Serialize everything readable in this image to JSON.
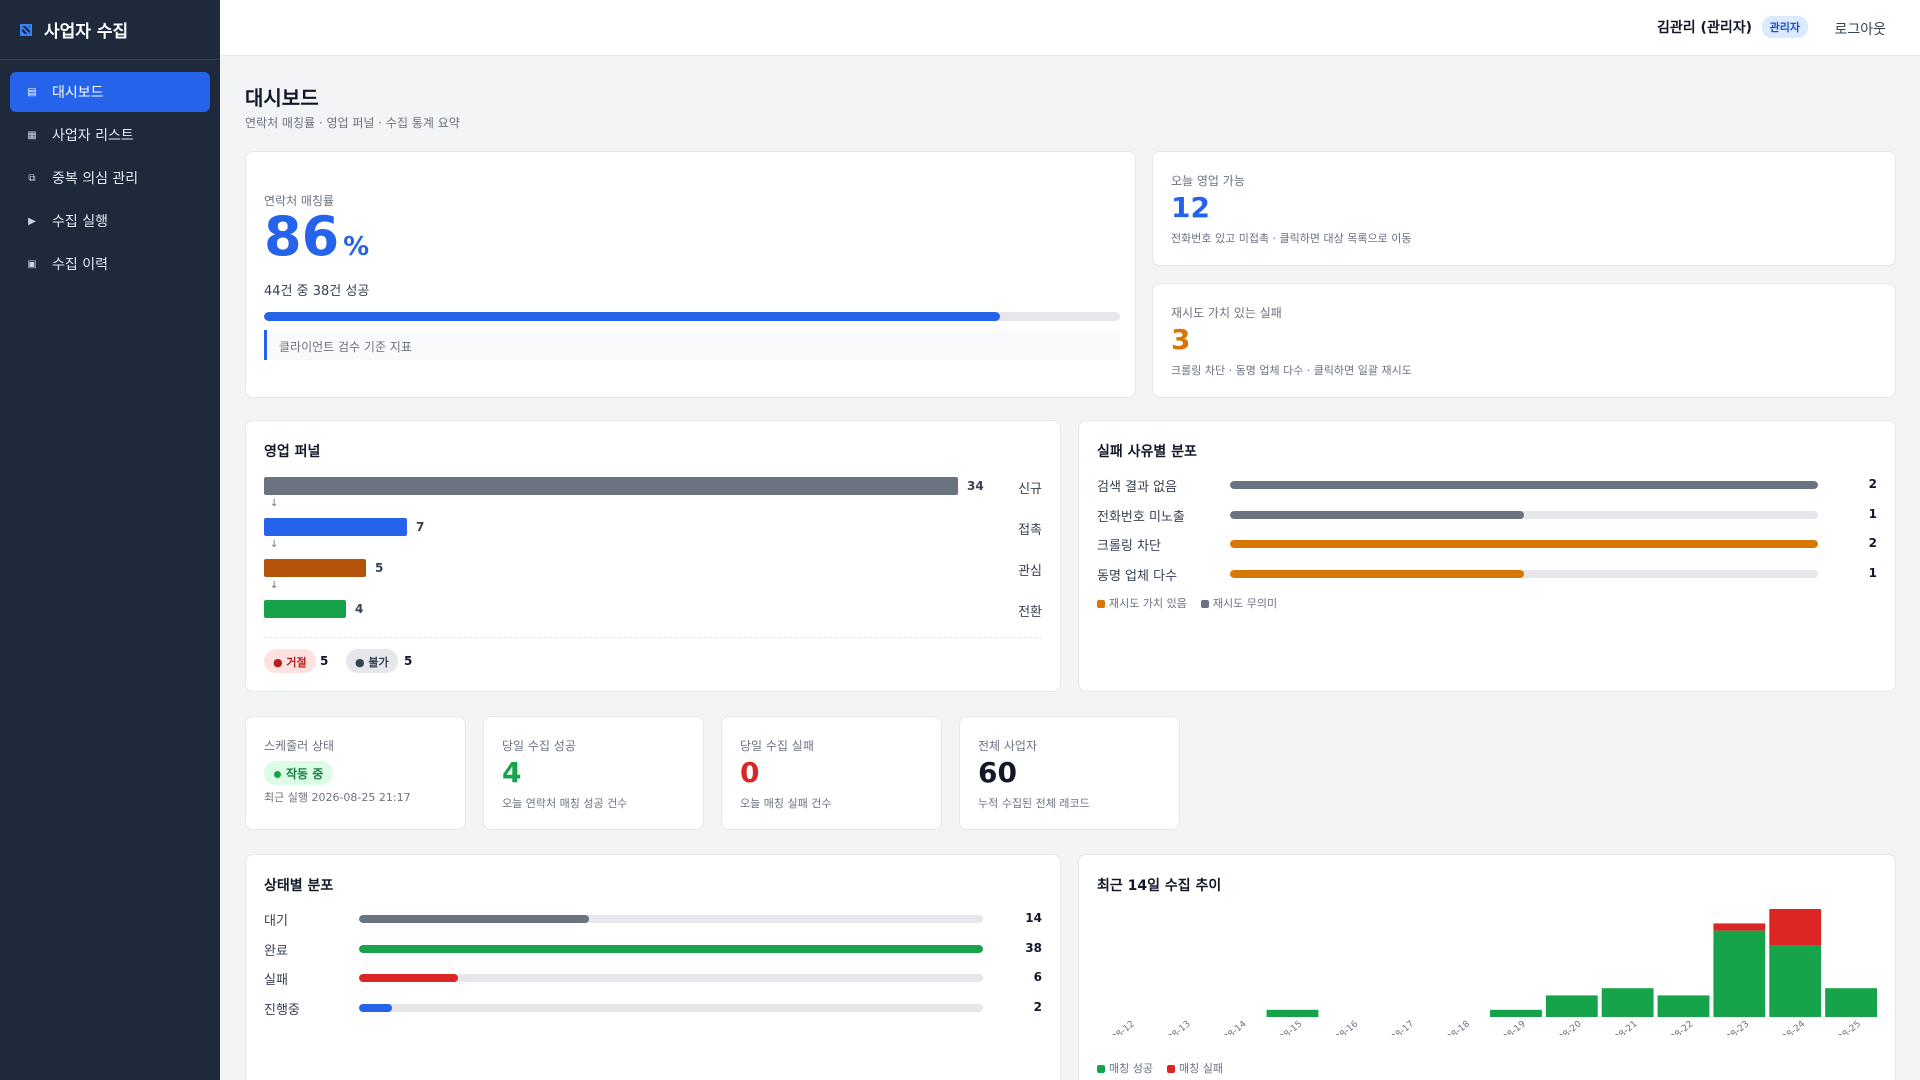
{
  "brand": {
    "title": "사업자 수집"
  },
  "nav": [
    {
      "label": "대시보드",
      "icon": "dashboard-icon",
      "active": true
    },
    {
      "label": "사업자 리스트",
      "icon": "list-icon",
      "active": false
    },
    {
      "label": "중복 의심 관리",
      "icon": "duplicate-icon",
      "active": false
    },
    {
      "label": "수집 실행",
      "icon": "play-icon",
      "active": false
    },
    {
      "label": "수집 이력",
      "icon": "history-icon",
      "active": false
    }
  ],
  "topbar": {
    "user": "김관리 (관리자)",
    "role_badge": "관리자",
    "logout": "로그아웃"
  },
  "page": {
    "title": "대시보드",
    "subtitle": "연락처 매칭률 · 영업 퍼널 · 수집 통계 요약"
  },
  "match": {
    "label": "연락처 매칭률",
    "value": "86",
    "unit": "%",
    "sub": "44건 중 38건 성공",
    "progress": 0.86,
    "note": "클라이언트 검수 기준 지표"
  },
  "sales_today": {
    "label": "오늘 영업 가능",
    "value": "12",
    "sub": "전화번호 있고 미접촉 · 클릭하면 대상 목록으로 이동"
  },
  "retry_fail": {
    "label": "재시도 가치 있는 실패",
    "value": "3",
    "sub": "크롤링 차단 · 동명 업체 다수 · 클릭하면 일괄 재시도"
  },
  "funnel": {
    "title": "영업 퍼널",
    "max": 34,
    "stages": [
      {
        "label": "신규",
        "value": 34,
        "color": "#6b7280"
      },
      {
        "label": "접촉",
        "value": 7,
        "color": "#2563eb"
      },
      {
        "label": "관심",
        "value": 5,
        "color": "#b45309"
      },
      {
        "label": "전환",
        "value": 4,
        "color": "#16a34a"
      }
    ],
    "arrow": "↓",
    "rejected": {
      "label": "● 거절",
      "count": "5"
    },
    "impossible": {
      "label": "● 불가",
      "count": "5"
    }
  },
  "failure": {
    "title": "실패 사유별 분포",
    "max": 2,
    "rows": [
      {
        "label": "검색 결과 없음",
        "value": 2,
        "color": "#6b7280"
      },
      {
        "label": "전화번호 미노출",
        "value": 1,
        "color": "#6b7280"
      },
      {
        "label": "크롤링 차단",
        "value": 2,
        "color": "#d97706"
      },
      {
        "label": "동명 업체 다수",
        "value": 1,
        "color": "#d97706"
      }
    ],
    "legend": [
      {
        "label": "재시도 가치 있음",
        "color": "#d97706"
      },
      {
        "label": "재시도 무의미",
        "color": "#6b7280"
      }
    ]
  },
  "scheduler": {
    "label": "스케줄러 상태",
    "badge": "작동 중",
    "sub": "최근 실행 2026-08-25 21:17"
  },
  "today_success": {
    "label": "당일 수집 성공",
    "value": "4",
    "sub": "오늘 연락처 매칭 성공 건수"
  },
  "today_fail": {
    "label": "당일 수집 실패",
    "value": "0",
    "sub": "오늘 매칭 실패 건수"
  },
  "total_biz": {
    "label": "전체 사업자",
    "value": "60",
    "sub": "누적 수집된 전체 레코드"
  },
  "status_dist": {
    "title": "상태별 분포",
    "max": 38,
    "rows": [
      {
        "label": "대기",
        "value": 14,
        "color": "#6b7280"
      },
      {
        "label": "완료",
        "value": 38,
        "color": "#16a34a"
      },
      {
        "label": "실패",
        "value": 6,
        "color": "#dc2626"
      },
      {
        "label": "진행중",
        "value": 2,
        "color": "#2563eb"
      }
    ]
  },
  "chart_data": {
    "type": "bar",
    "stacked": true,
    "title": "최근 14일 수집 추이",
    "categories": [
      "08-12",
      "08-13",
      "08-14",
      "08-15",
      "08-16",
      "08-17",
      "08-18",
      "08-19",
      "08-20",
      "08-21",
      "08-22",
      "08-23",
      "08-24",
      "08-25"
    ],
    "series": [
      {
        "name": "매칭 성공",
        "color": "#16a34a",
        "values": [
          0,
          0,
          0,
          1,
          0,
          0,
          0,
          1,
          3,
          4,
          3,
          12,
          10,
          4
        ]
      },
      {
        "name": "매칭 실패",
        "color": "#dc2626",
        "values": [
          0,
          0,
          0,
          0,
          0,
          0,
          0,
          0,
          0,
          0,
          0,
          1,
          5,
          0
        ]
      }
    ],
    "ylim": [
      0,
      15
    ]
  }
}
